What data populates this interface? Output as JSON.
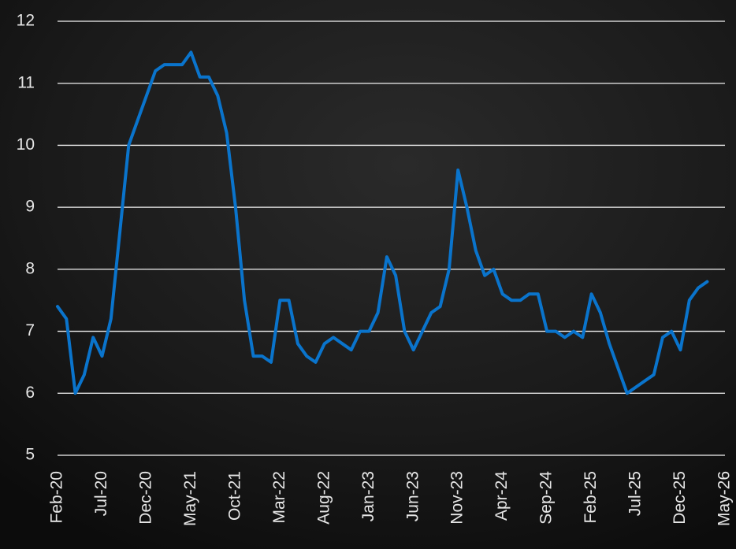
{
  "chart_data": {
    "type": "line",
    "categories": [
      "Feb-20",
      null,
      null,
      null,
      null,
      "Jul-20",
      null,
      null,
      null,
      null,
      "Dec-20",
      null,
      null,
      null,
      null,
      "May-21",
      null,
      null,
      null,
      null,
      "Oct-21",
      null,
      null,
      null,
      null,
      "Mar-22",
      null,
      null,
      null,
      null,
      "Aug-22",
      null,
      null,
      null,
      null,
      "Jan-23",
      null,
      null,
      null,
      null,
      "Jun-23",
      null,
      null,
      null,
      null,
      "Nov-23",
      null,
      null,
      null,
      null,
      "Apr-24",
      null,
      null,
      null,
      null,
      "Sep-24",
      null,
      null,
      null,
      null,
      "Feb-25",
      null,
      null,
      null,
      null,
      "Jul-25",
      null,
      null,
      null,
      null,
      "Dec-25",
      null,
      null,
      null,
      null,
      "May-26"
    ],
    "series": [
      {
        "color": "#0a74cc",
        "values": [
          7.4,
          7.2,
          6.0,
          6.3,
          6.9,
          6.6,
          7.2,
          8.6,
          10.0,
          10.4,
          10.8,
          11.2,
          11.3,
          11.3,
          11.3,
          11.5,
          11.1,
          11.1,
          10.8,
          10.2,
          9.0,
          7.5,
          6.6,
          6.6,
          6.5,
          7.5,
          7.5,
          6.8,
          6.6,
          6.5,
          6.8,
          6.9,
          6.8,
          6.7,
          7.0,
          7.0,
          7.3,
          8.2,
          7.9,
          7.0,
          6.7,
          7.0,
          7.3,
          7.4,
          8.0,
          9.6,
          9.0,
          8.3,
          7.9,
          8.0,
          7.6,
          7.5,
          7.5,
          7.6,
          7.6,
          7.0,
          7.0,
          6.9,
          7.0,
          6.9,
          7.6,
          7.3,
          6.8,
          6.4,
          6.0,
          6.1,
          6.2,
          6.3,
          6.9,
          7.0,
          6.7,
          7.5,
          7.7,
          7.8,
          null,
          null
        ]
      }
    ],
    "ylim": [
      5,
      12
    ],
    "yticks": [
      5,
      6,
      7,
      8,
      9,
      10,
      11,
      12
    ],
    "grid": true
  }
}
